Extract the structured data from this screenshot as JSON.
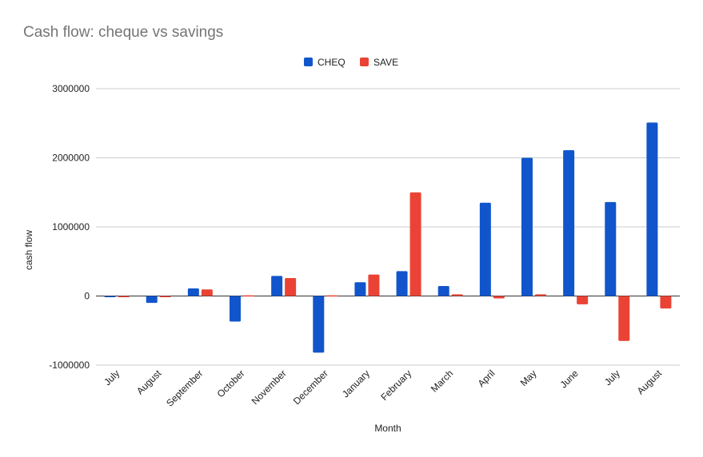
{
  "chart_data": {
    "type": "bar",
    "title": "Cash flow: cheque vs savings",
    "xlabel": "Month",
    "ylabel": "cash flow",
    "categories": [
      "July",
      "August",
      "September",
      "October",
      "November",
      "December",
      "January",
      "February",
      "March",
      "April",
      "May",
      "June",
      "July",
      "August"
    ],
    "series": [
      {
        "name": "CHEQ",
        "color": "#1155cc",
        "values": [
          -15000,
          -100000,
          110000,
          -370000,
          290000,
          -820000,
          200000,
          360000,
          145000,
          1350000,
          2000000,
          2110000,
          1360000,
          2510000
        ]
      },
      {
        "name": "SAVE",
        "color": "#ea4335",
        "values": [
          0,
          -5000,
          95000,
          10000,
          260000,
          10000,
          310000,
          1500000,
          25000,
          -35000,
          25000,
          -120000,
          -650000,
          -180000
        ]
      }
    ],
    "ylim": [
      -1000000,
      3000000
    ],
    "yticks": [
      -1000000,
      0,
      1000000,
      2000000,
      3000000
    ],
    "grid": true,
    "legend_position": "top-center"
  }
}
